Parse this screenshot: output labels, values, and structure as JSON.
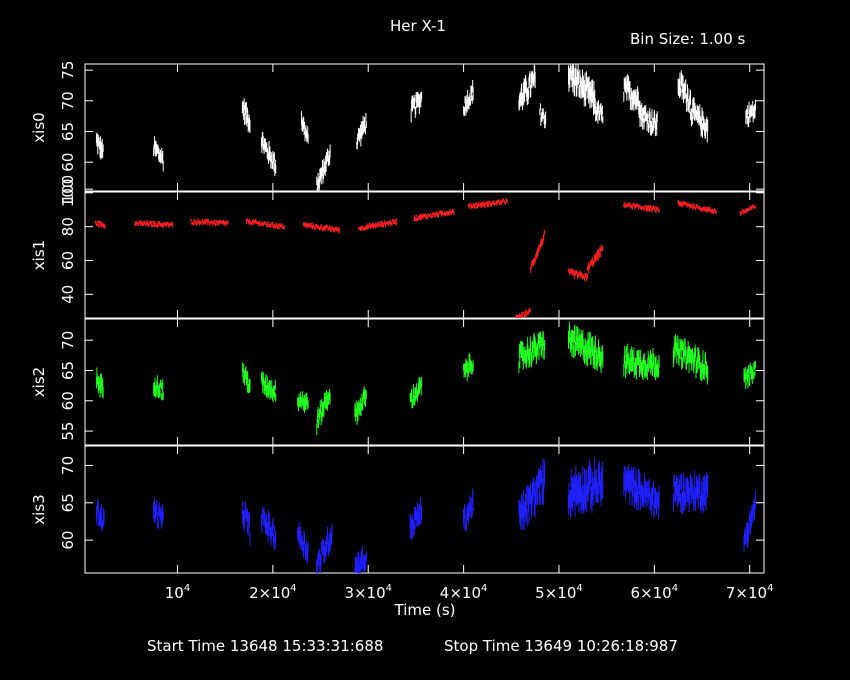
{
  "title": "Her X-1",
  "bin_size": "Bin Size: 1.00 s",
  "start_time": "Start Time 13648 15:33:31:688",
  "stop_time": "Stop Time 13649 10:26:18:987",
  "chart_data": {
    "type": "scatter",
    "xlabel": "Time (s)",
    "xlim": [
      300,
      71500
    ],
    "x_ticks": [
      {
        "value": 10000,
        "base": "10",
        "exp": "4"
      },
      {
        "value": 20000,
        "base": "2×10",
        "exp": "4"
      },
      {
        "value": 30000,
        "base": "3×10",
        "exp": "4"
      },
      {
        "value": 40000,
        "base": "4×10",
        "exp": "4"
      },
      {
        "value": 50000,
        "base": "5×10",
        "exp": "4"
      },
      {
        "value": 60000,
        "base": "6×10",
        "exp": "4"
      },
      {
        "value": 70000,
        "base": "7×10",
        "exp": "4"
      }
    ],
    "panels": [
      {
        "name": "xis0",
        "color": "#ffffff",
        "ylim": [
          55.3,
          76
        ],
        "y_ticks": [
          {
            "value": 60,
            "label": "60"
          },
          {
            "value": 65,
            "label": "65"
          },
          {
            "value": 70,
            "label": "70"
          },
          {
            "value": 75,
            "label": "75"
          }
        ],
        "y_tick_extra": {
          "value": 55.6,
          "label": "100"
        },
        "segments": [
          {
            "x0": 1500,
            "x1": 2200,
            "y0": 63.5,
            "y1": 61.5,
            "spread": 1.5
          },
          {
            "x0": 7500,
            "x1": 8500,
            "y0": 62.5,
            "y1": 60.5,
            "spread": 1.5
          },
          {
            "x0": 16800,
            "x1": 17600,
            "y0": 69,
            "y1": 66.5,
            "spread": 1.6
          },
          {
            "x0": 18800,
            "x1": 20300,
            "y0": 63.5,
            "y1": 59.5,
            "spread": 1.5
          },
          {
            "x0": 23000,
            "x1": 23700,
            "y0": 67,
            "y1": 63.5,
            "spread": 1.5
          },
          {
            "x0": 24600,
            "x1": 26000,
            "y0": 56,
            "y1": 61.5,
            "spread": 1.5
          },
          {
            "x0": 28800,
            "x1": 29800,
            "y0": 63.5,
            "y1": 66.5,
            "spread": 1.5
          },
          {
            "x0": 34500,
            "x1": 35600,
            "y0": 68.5,
            "y1": 70.5,
            "spread": 1.5
          },
          {
            "x0": 40000,
            "x1": 41000,
            "y0": 69,
            "y1": 71.5,
            "spread": 1.5
          },
          {
            "x0": 45800,
            "x1": 47500,
            "y0": 70,
            "y1": 73.5,
            "spread": 2.0
          },
          {
            "x0": 48000,
            "x1": 48600,
            "y0": 68,
            "y1": 67,
            "spread": 1.5
          },
          {
            "x0": 51000,
            "x1": 53800,
            "y0": 74.5,
            "y1": 70,
            "spread": 2.2
          },
          {
            "x0": 53800,
            "x1": 54600,
            "y0": 68.5,
            "y1": 67.5,
            "spread": 1.5
          },
          {
            "x0": 56800,
            "x1": 58500,
            "y0": 72,
            "y1": 70,
            "spread": 2.0
          },
          {
            "x0": 58500,
            "x1": 60300,
            "y0": 68,
            "y1": 66,
            "spread": 1.8
          },
          {
            "x0": 62500,
            "x1": 63800,
            "y0": 73,
            "y1": 70,
            "spread": 2.0
          },
          {
            "x0": 63800,
            "x1": 65600,
            "y0": 68.5,
            "y1": 65.5,
            "spread": 1.8
          },
          {
            "x0": 69600,
            "x1": 70600,
            "y0": 67.5,
            "y1": 68.5,
            "spread": 1.5
          }
        ]
      },
      {
        "name": "xis1",
        "color": "#ff2020",
        "ylim": [
          26,
          100.5
        ],
        "y_ticks": [
          {
            "value": 40,
            "label": "40"
          },
          {
            "value": 60,
            "label": "60"
          },
          {
            "value": 80,
            "label": "80"
          },
          {
            "value": 100,
            "label": "100"
          }
        ],
        "segments": [
          {
            "x0": 1400,
            "x1": 2400,
            "y0": 82,
            "y1": 81,
            "spread": 1.5
          },
          {
            "x0": 5500,
            "x1": 9500,
            "y0": 82,
            "y1": 81,
            "spread": 1.5
          },
          {
            "x0": 11400,
            "x1": 15300,
            "y0": 83,
            "y1": 82,
            "spread": 1.5
          },
          {
            "x0": 17200,
            "x1": 21200,
            "y0": 83,
            "y1": 80,
            "spread": 1.5
          },
          {
            "x0": 23200,
            "x1": 27000,
            "y0": 81,
            "y1": 78,
            "spread": 1.5
          },
          {
            "x0": 29000,
            "x1": 33000,
            "y0": 79,
            "y1": 83,
            "spread": 1.5
          },
          {
            "x0": 34800,
            "x1": 39000,
            "y0": 85,
            "y1": 89,
            "spread": 1.5
          },
          {
            "x0": 40500,
            "x1": 44600,
            "y0": 92,
            "y1": 95,
            "spread": 1.5
          },
          {
            "x0": 45500,
            "x1": 47000,
            "y0": 26,
            "y1": 30,
            "spread": 1.5
          },
          {
            "x0": 47000,
            "x1": 48500,
            "y0": 55,
            "y1": 75,
            "spread": 2.5
          },
          {
            "x0": 51000,
            "x1": 53000,
            "y0": 53,
            "y1": 50,
            "spread": 2.0
          },
          {
            "x0": 53000,
            "x1": 54600,
            "y0": 55,
            "y1": 67,
            "spread": 2.5
          },
          {
            "x0": 56800,
            "x1": 60500,
            "y0": 93,
            "y1": 90,
            "spread": 1.5
          },
          {
            "x0": 62500,
            "x1": 66500,
            "y0": 94,
            "y1": 89,
            "spread": 1.5
          },
          {
            "x0": 69000,
            "x1": 70600,
            "y0": 88,
            "y1": 92,
            "spread": 1.5
          }
        ]
      },
      {
        "name": "xis2",
        "color": "#20ff20",
        "ylim": [
          52.7,
          73.5
        ],
        "y_ticks": [
          {
            "value": 55,
            "label": "55"
          },
          {
            "value": 60,
            "label": "60"
          },
          {
            "value": 65,
            "label": "65"
          },
          {
            "value": 70,
            "label": "70"
          }
        ],
        "segments": [
          {
            "x0": 1500,
            "x1": 2200,
            "y0": 63.5,
            "y1": 62,
            "spread": 1.5
          },
          {
            "x0": 7500,
            "x1": 8500,
            "y0": 63,
            "y1": 61.5,
            "spread": 1.5
          },
          {
            "x0": 16800,
            "x1": 17600,
            "y0": 65,
            "y1": 62.5,
            "spread": 1.6
          },
          {
            "x0": 18800,
            "x1": 20300,
            "y0": 63,
            "y1": 61.5,
            "spread": 1.5
          },
          {
            "x0": 22600,
            "x1": 23700,
            "y0": 60.5,
            "y1": 59.5,
            "spread": 1.5
          },
          {
            "x0": 24600,
            "x1": 26000,
            "y0": 56.5,
            "y1": 61.5,
            "spread": 1.6
          },
          {
            "x0": 28600,
            "x1": 29800,
            "y0": 57.5,
            "y1": 61,
            "spread": 1.5
          },
          {
            "x0": 34400,
            "x1": 35600,
            "y0": 60,
            "y1": 62.5,
            "spread": 1.5
          },
          {
            "x0": 40000,
            "x1": 41000,
            "y0": 64.5,
            "y1": 66.5,
            "spread": 1.5
          },
          {
            "x0": 45800,
            "x1": 48500,
            "y0": 67,
            "y1": 69.5,
            "spread": 2.0
          },
          {
            "x0": 51000,
            "x1": 54600,
            "y0": 70,
            "y1": 67.5,
            "spread": 2.2
          },
          {
            "x0": 56800,
            "x1": 60500,
            "y0": 66.5,
            "y1": 66,
            "spread": 2.0
          },
          {
            "x0": 62000,
            "x1": 65600,
            "y0": 68.5,
            "y1": 65.5,
            "spread": 2.0
          },
          {
            "x0": 69400,
            "x1": 70600,
            "y0": 63.5,
            "y1": 65,
            "spread": 1.5
          }
        ]
      },
      {
        "name": "xis3",
        "color": "#2020ff",
        "ylim": [
          55.6,
          72.6
        ],
        "y_ticks": [
          {
            "value": 60,
            "label": "60"
          },
          {
            "value": 65,
            "label": "65"
          },
          {
            "value": 70,
            "label": "70"
          }
        ],
        "segments": [
          {
            "x0": 1500,
            "x1": 2300,
            "y0": 64,
            "y1": 62.5,
            "spread": 1.5
          },
          {
            "x0": 7500,
            "x1": 8500,
            "y0": 64,
            "y1": 62.5,
            "spread": 1.5
          },
          {
            "x0": 16800,
            "x1": 17600,
            "y0": 64,
            "y1": 61.5,
            "spread": 1.6
          },
          {
            "x0": 18800,
            "x1": 20300,
            "y0": 63,
            "y1": 60.5,
            "spread": 1.5
          },
          {
            "x0": 22600,
            "x1": 23700,
            "y0": 61,
            "y1": 58.5,
            "spread": 1.5
          },
          {
            "x0": 24600,
            "x1": 26200,
            "y0": 56.5,
            "y1": 61,
            "spread": 1.6
          },
          {
            "x0": 28600,
            "x1": 29800,
            "y0": 56.5,
            "y1": 57.5,
            "spread": 1.5
          },
          {
            "x0": 34400,
            "x1": 35600,
            "y0": 61.5,
            "y1": 64,
            "spread": 1.5
          },
          {
            "x0": 40000,
            "x1": 41000,
            "y0": 62.5,
            "y1": 65,
            "spread": 1.5
          },
          {
            "x0": 45800,
            "x1": 48500,
            "y0": 63,
            "y1": 68,
            "spread": 2.2
          },
          {
            "x0": 51000,
            "x1": 54600,
            "y0": 66.5,
            "y1": 67.5,
            "spread": 2.5
          },
          {
            "x0": 56800,
            "x1": 60500,
            "y0": 68,
            "y1": 65,
            "spread": 2.0
          },
          {
            "x0": 62000,
            "x1": 65600,
            "y0": 66.5,
            "y1": 66.5,
            "spread": 2.0
          },
          {
            "x0": 69400,
            "x1": 70600,
            "y0": 60,
            "y1": 64.5,
            "spread": 1.6
          }
        ]
      }
    ]
  }
}
